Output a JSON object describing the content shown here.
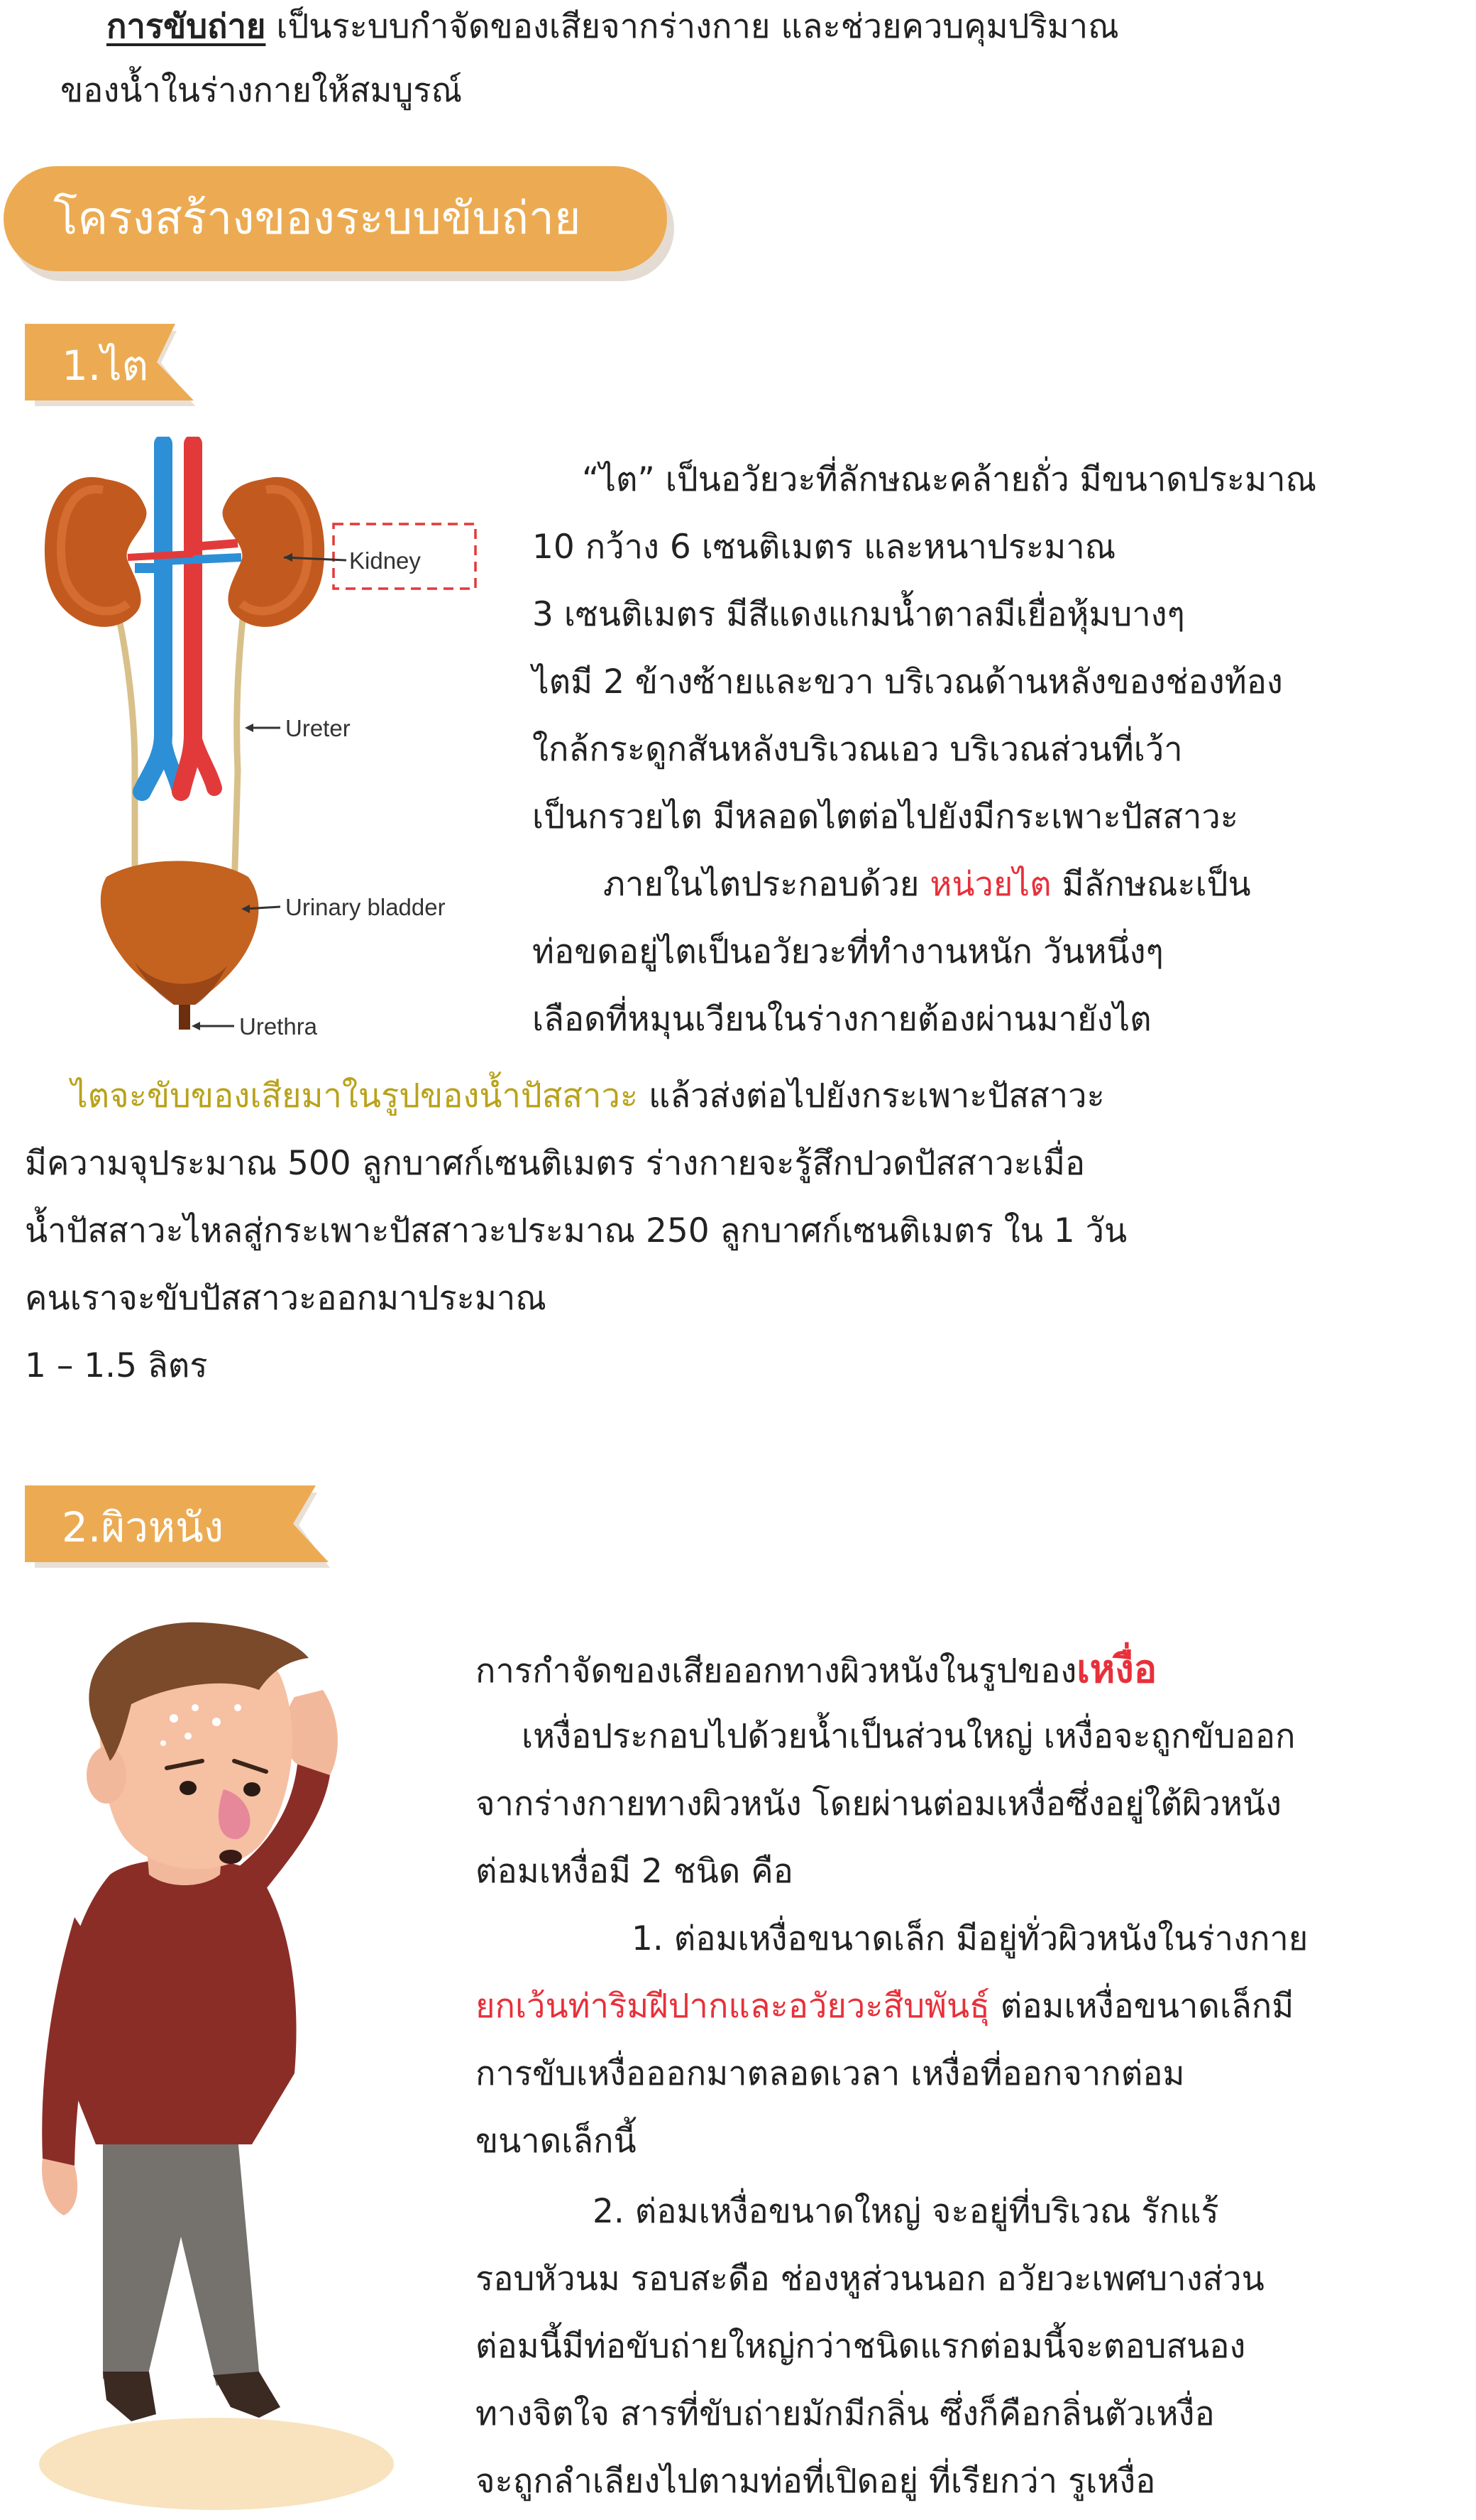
{
  "intro": {
    "term": "การขับถ่าย",
    "line1_rest": " เป็นระบบกำจัดของเสียจากร่างกาย  และช่วยควบคุมปริมาณ",
    "line2": "ของน้ำในร่างกายให้สมบูรณ์"
  },
  "section_title": "โครงสร้างของระบบขับถ่าย",
  "kidney": {
    "tag": "1.ไต",
    "labels": {
      "kidney": "Kidney",
      "ureter": "Ureter",
      "bladder": "Urinary bladder",
      "urethra": "Urethra"
    },
    "p1": [
      "“ไต”  เป็นอวัยวะที่ลักษณะคล้ายถั่ว  มีขนาดประมาณ",
      "10   กว้าง   6   เซนติเมตร  และหนาประมาณ",
      "3 เซนติเมตร  มีสีแดงแกมน้ำตาลมีเยื่อหุ้มบางๆ",
      "ไตมี   2   ข้างซ้ายและขวา  บริเวณด้านหลังของช่องท้อง",
      "ใกล้กระดูกสันหลังบริเวณเอว   บริเวณส่วนที่เว้า",
      "เป็นกรวยไต  มีหลอดไตต่อไปยังมีกระเพาะปัสสาวะ"
    ],
    "p2_start": "ภายในไตประกอบด้วย  ",
    "p2_highlight": "หน่วยไต",
    "p2_end": " มีลักษณะเป็น",
    "p2_lines": [
      "ท่อขดอยู่ไตเป็นอวัยวะที่ทำงานหนัก  วันหนึ่งๆ",
      "เลือดที่หมุนเวียนในร่างกายต้องผ่านมายังไต"
    ],
    "p3_highlight": "ไตจะขับของเสียมาในรูปของน้ำปัสสาวะ",
    "p3_rest": "  แล้วส่งต่อไปยังกระเพาะปัสสาวะ",
    "p3_lines": [
      "มีความจุประมาณ  500  ลูกบาศก์เซนติเมตร  ร่างกายจะรู้สึกปวดปัสสาวะเมื่อ",
      "น้ำปัสสาวะไหลสู่กระเพาะปัสสาวะประมาณ  250  ลูกบาศก์เซนติเมตร  ใน  1  วัน",
      "คนเราจะขับปัสสาวะออกมาประมาณ",
      "1   –   1.5   ลิตร"
    ]
  },
  "skin": {
    "tag": "2.ผิวหนัง",
    "l1_start": "การกำจัดของเสียออกทางผิวหนังในรูปของ",
    "l1_highlight": "เหงื่อ",
    "lines_a": [
      "เหงื่อประกอบไปด้วยน้ำเป็นส่วนใหญ่  เหงื่อจะถูกขับออก",
      "จากร่างกายทางผิวหนัง  โดยผ่านต่อมเหงื่อซึ่งอยู่ใต้ผิวหนัง",
      "ต่อมเหงื่อมี   2   ชนิด คือ",
      "1.  ต่อมเหงื่อขนาดเล็ก  มีอยู่ทั่วผิวหนังในร่างกาย"
    ],
    "l6_highlight": "ยกเว้นท่าริมฝีปากและอวัยวะสืบพันธุ์",
    "l6_rest": " ต่อมเหงื่อขนาดเล็กมี",
    "lines_b": [
      "การขับเหงื่อออกมาตลอดเวลา  เหงื่อที่ออกจากต่อม",
      "ขนาดเล็กนี้",
      "2.  ต่อมเหงื่อขนาดใหญ่  จะอยู่ที่บริเวณ  รักแร้",
      "รอบหัวนม  รอบสะดือ  ช่องหูส่วนนอก  อวัยวะเพศบางส่วน",
      "ต่อมนี้มีท่อขับถ่ายใหญ่กว่าชนิดแรกต่อมนี้จะตอบสนอง",
      "ทางจิตใจ  สารที่ขับถ่ายมักมีกลิ่น  ซึ่งก็คือกลิ่นตัวเหงื่อ",
      "จะถูกลำเลียงไปตามท่อที่เปิดอยู่  ที่เรียกว่า  รูเหงื่อ"
    ]
  },
  "colors": {
    "accent": "#ecab52",
    "red": "#e8303a",
    "olive": "#b9a21a"
  }
}
